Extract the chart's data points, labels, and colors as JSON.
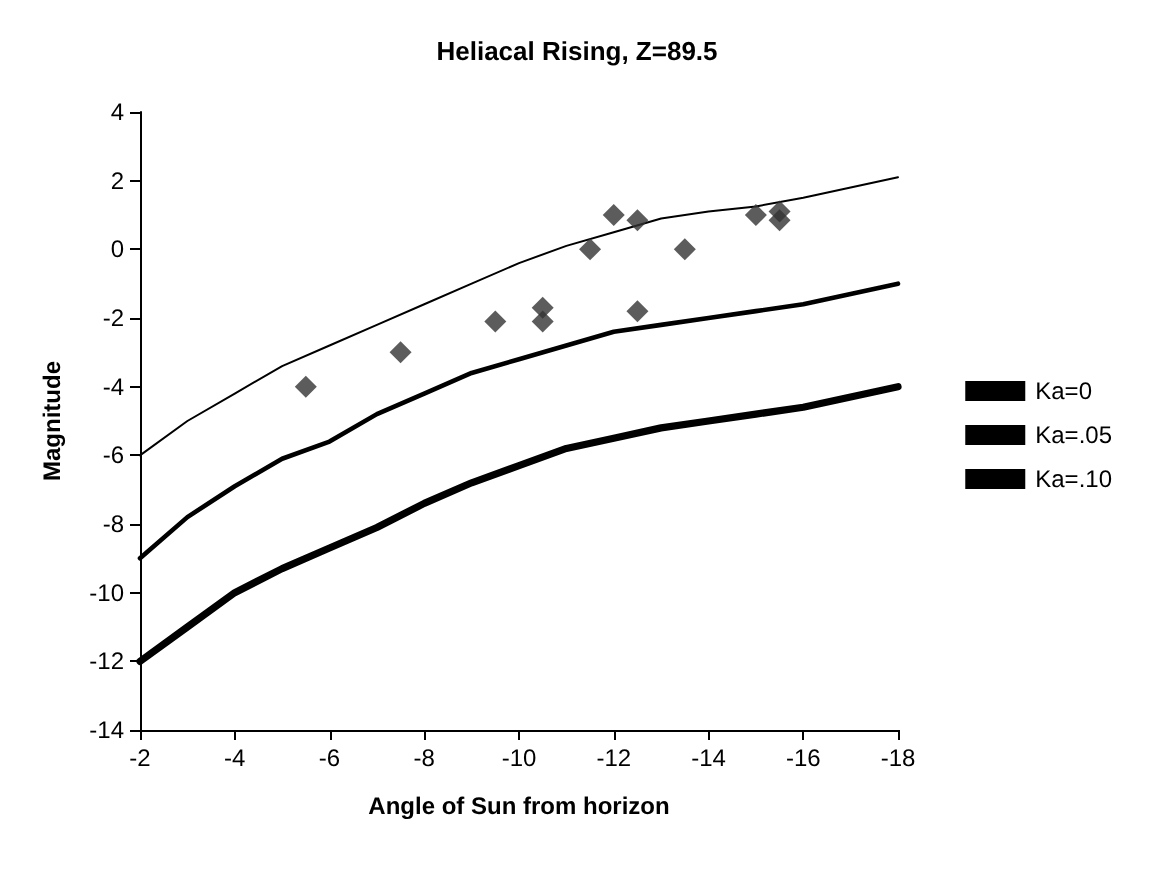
{
  "chart_data": {
    "type": "line",
    "title": "Heliacal Rising, Z=89.5",
    "xlabel": "Angle of Sun from horizon",
    "ylabel": "Magnitude",
    "x": [
      -2,
      -3,
      -4,
      -5,
      -6,
      -7,
      -8,
      -9,
      -10,
      -11,
      -12,
      -13,
      -14,
      -15,
      -16,
      -17,
      -18
    ],
    "xlim": [
      -2,
      -18
    ],
    "xticks": [
      -2,
      -4,
      -6,
      -8,
      -10,
      -12,
      -14,
      -16,
      -18
    ],
    "ylim": [
      -14,
      4
    ],
    "yticks": [
      -14,
      -12,
      -10,
      -8,
      -6,
      -4,
      -2,
      0,
      2,
      4
    ],
    "grid": false,
    "legend": "right",
    "marker": "none",
    "series": [
      {
        "name": "Ka=0",
        "color": "#000000",
        "values": [
          -6,
          -5,
          -4.2,
          -3.4,
          -2.8,
          -2.2,
          -1.6,
          -1,
          -0.4,
          0.1,
          0.5,
          0.9,
          1.1,
          1.25,
          1.5,
          1.8,
          2.1
        ]
      },
      {
        "name": "Ka=.05",
        "color": "#000000",
        "values": [
          -9,
          -7.8,
          -6.9,
          -6.1,
          -5.6,
          -4.8,
          -4.2,
          -3.6,
          -3.2,
          -2.8,
          -2.4,
          -2.2,
          -2,
          -1.8,
          -1.6,
          -1.3,
          -1
        ]
      },
      {
        "name": "Ka=.10",
        "color": "#000000",
        "values": [
          -12,
          -11,
          -10,
          -9.3,
          -8.7,
          -8.1,
          -7.4,
          -6.8,
          -6.3,
          -5.8,
          -5.5,
          -5.2,
          -5,
          -4.8,
          -4.6,
          -4.3,
          -4
        ]
      },
      {
        "type": "scatter",
        "marker": "diamond",
        "color": "#333333",
        "x": [
          -5.5,
          -7.5,
          -9.5,
          -10.5,
          -10.5,
          -11.5,
          -12,
          -12.5,
          -12.5,
          -13.5,
          -15,
          -15.5,
          -15.5
        ],
        "values": [
          -4,
          -3,
          -2.1,
          -1.7,
          -2.1,
          0,
          1,
          0.85,
          -1.8,
          0,
          1,
          1.1,
          0.85
        ]
      }
    ]
  }
}
